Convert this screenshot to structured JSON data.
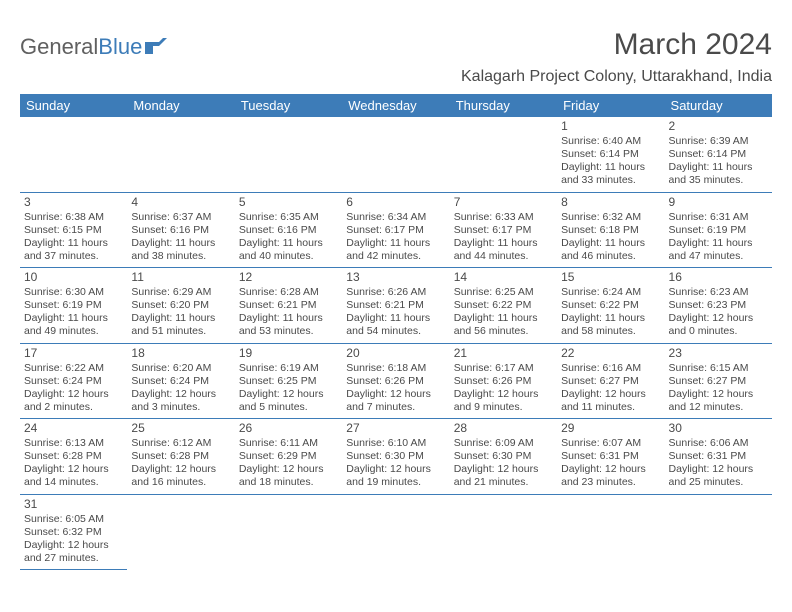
{
  "logo": {
    "text1": "General",
    "text2": "Blue"
  },
  "title": "March 2024",
  "location": "Kalagarh Project Colony, Uttarakhand, India",
  "colors": {
    "header_bg": "#3d7cb8",
    "header_text": "#ffffff",
    "text": "#4a4a4a",
    "border": "#3d7cb8",
    "background": "#ffffff"
  },
  "calendar": {
    "day_labels": [
      "Sunday",
      "Monday",
      "Tuesday",
      "Wednesday",
      "Thursday",
      "Friday",
      "Saturday"
    ],
    "weeks": [
      [
        null,
        null,
        null,
        null,
        null,
        {
          "n": "1",
          "sr": "Sunrise: 6:40 AM",
          "ss": "Sunset: 6:14 PM",
          "d1": "Daylight: 11 hours",
          "d2": "and 33 minutes."
        },
        {
          "n": "2",
          "sr": "Sunrise: 6:39 AM",
          "ss": "Sunset: 6:14 PM",
          "d1": "Daylight: 11 hours",
          "d2": "and 35 minutes."
        }
      ],
      [
        {
          "n": "3",
          "sr": "Sunrise: 6:38 AM",
          "ss": "Sunset: 6:15 PM",
          "d1": "Daylight: 11 hours",
          "d2": "and 37 minutes."
        },
        {
          "n": "4",
          "sr": "Sunrise: 6:37 AM",
          "ss": "Sunset: 6:16 PM",
          "d1": "Daylight: 11 hours",
          "d2": "and 38 minutes."
        },
        {
          "n": "5",
          "sr": "Sunrise: 6:35 AM",
          "ss": "Sunset: 6:16 PM",
          "d1": "Daylight: 11 hours",
          "d2": "and 40 minutes."
        },
        {
          "n": "6",
          "sr": "Sunrise: 6:34 AM",
          "ss": "Sunset: 6:17 PM",
          "d1": "Daylight: 11 hours",
          "d2": "and 42 minutes."
        },
        {
          "n": "7",
          "sr": "Sunrise: 6:33 AM",
          "ss": "Sunset: 6:17 PM",
          "d1": "Daylight: 11 hours",
          "d2": "and 44 minutes."
        },
        {
          "n": "8",
          "sr": "Sunrise: 6:32 AM",
          "ss": "Sunset: 6:18 PM",
          "d1": "Daylight: 11 hours",
          "d2": "and 46 minutes."
        },
        {
          "n": "9",
          "sr": "Sunrise: 6:31 AM",
          "ss": "Sunset: 6:19 PM",
          "d1": "Daylight: 11 hours",
          "d2": "and 47 minutes."
        }
      ],
      [
        {
          "n": "10",
          "sr": "Sunrise: 6:30 AM",
          "ss": "Sunset: 6:19 PM",
          "d1": "Daylight: 11 hours",
          "d2": "and 49 minutes."
        },
        {
          "n": "11",
          "sr": "Sunrise: 6:29 AM",
          "ss": "Sunset: 6:20 PM",
          "d1": "Daylight: 11 hours",
          "d2": "and 51 minutes."
        },
        {
          "n": "12",
          "sr": "Sunrise: 6:28 AM",
          "ss": "Sunset: 6:21 PM",
          "d1": "Daylight: 11 hours",
          "d2": "and 53 minutes."
        },
        {
          "n": "13",
          "sr": "Sunrise: 6:26 AM",
          "ss": "Sunset: 6:21 PM",
          "d1": "Daylight: 11 hours",
          "d2": "and 54 minutes."
        },
        {
          "n": "14",
          "sr": "Sunrise: 6:25 AM",
          "ss": "Sunset: 6:22 PM",
          "d1": "Daylight: 11 hours",
          "d2": "and 56 minutes."
        },
        {
          "n": "15",
          "sr": "Sunrise: 6:24 AM",
          "ss": "Sunset: 6:22 PM",
          "d1": "Daylight: 11 hours",
          "d2": "and 58 minutes."
        },
        {
          "n": "16",
          "sr": "Sunrise: 6:23 AM",
          "ss": "Sunset: 6:23 PM",
          "d1": "Daylight: 12 hours",
          "d2": "and 0 minutes."
        }
      ],
      [
        {
          "n": "17",
          "sr": "Sunrise: 6:22 AM",
          "ss": "Sunset: 6:24 PM",
          "d1": "Daylight: 12 hours",
          "d2": "and 2 minutes."
        },
        {
          "n": "18",
          "sr": "Sunrise: 6:20 AM",
          "ss": "Sunset: 6:24 PM",
          "d1": "Daylight: 12 hours",
          "d2": "and 3 minutes."
        },
        {
          "n": "19",
          "sr": "Sunrise: 6:19 AM",
          "ss": "Sunset: 6:25 PM",
          "d1": "Daylight: 12 hours",
          "d2": "and 5 minutes."
        },
        {
          "n": "20",
          "sr": "Sunrise: 6:18 AM",
          "ss": "Sunset: 6:26 PM",
          "d1": "Daylight: 12 hours",
          "d2": "and 7 minutes."
        },
        {
          "n": "21",
          "sr": "Sunrise: 6:17 AM",
          "ss": "Sunset: 6:26 PM",
          "d1": "Daylight: 12 hours",
          "d2": "and 9 minutes."
        },
        {
          "n": "22",
          "sr": "Sunrise: 6:16 AM",
          "ss": "Sunset: 6:27 PM",
          "d1": "Daylight: 12 hours",
          "d2": "and 11 minutes."
        },
        {
          "n": "23",
          "sr": "Sunrise: 6:15 AM",
          "ss": "Sunset: 6:27 PM",
          "d1": "Daylight: 12 hours",
          "d2": "and 12 minutes."
        }
      ],
      [
        {
          "n": "24",
          "sr": "Sunrise: 6:13 AM",
          "ss": "Sunset: 6:28 PM",
          "d1": "Daylight: 12 hours",
          "d2": "and 14 minutes."
        },
        {
          "n": "25",
          "sr": "Sunrise: 6:12 AM",
          "ss": "Sunset: 6:28 PM",
          "d1": "Daylight: 12 hours",
          "d2": "and 16 minutes."
        },
        {
          "n": "26",
          "sr": "Sunrise: 6:11 AM",
          "ss": "Sunset: 6:29 PM",
          "d1": "Daylight: 12 hours",
          "d2": "and 18 minutes."
        },
        {
          "n": "27",
          "sr": "Sunrise: 6:10 AM",
          "ss": "Sunset: 6:30 PM",
          "d1": "Daylight: 12 hours",
          "d2": "and 19 minutes."
        },
        {
          "n": "28",
          "sr": "Sunrise: 6:09 AM",
          "ss": "Sunset: 6:30 PM",
          "d1": "Daylight: 12 hours",
          "d2": "and 21 minutes."
        },
        {
          "n": "29",
          "sr": "Sunrise: 6:07 AM",
          "ss": "Sunset: 6:31 PM",
          "d1": "Daylight: 12 hours",
          "d2": "and 23 minutes."
        },
        {
          "n": "30",
          "sr": "Sunrise: 6:06 AM",
          "ss": "Sunset: 6:31 PM",
          "d1": "Daylight: 12 hours",
          "d2": "and 25 minutes."
        }
      ],
      [
        {
          "n": "31",
          "sr": "Sunrise: 6:05 AM",
          "ss": "Sunset: 6:32 PM",
          "d1": "Daylight: 12 hours",
          "d2": "and 27 minutes."
        },
        null,
        null,
        null,
        null,
        null,
        null
      ]
    ]
  }
}
